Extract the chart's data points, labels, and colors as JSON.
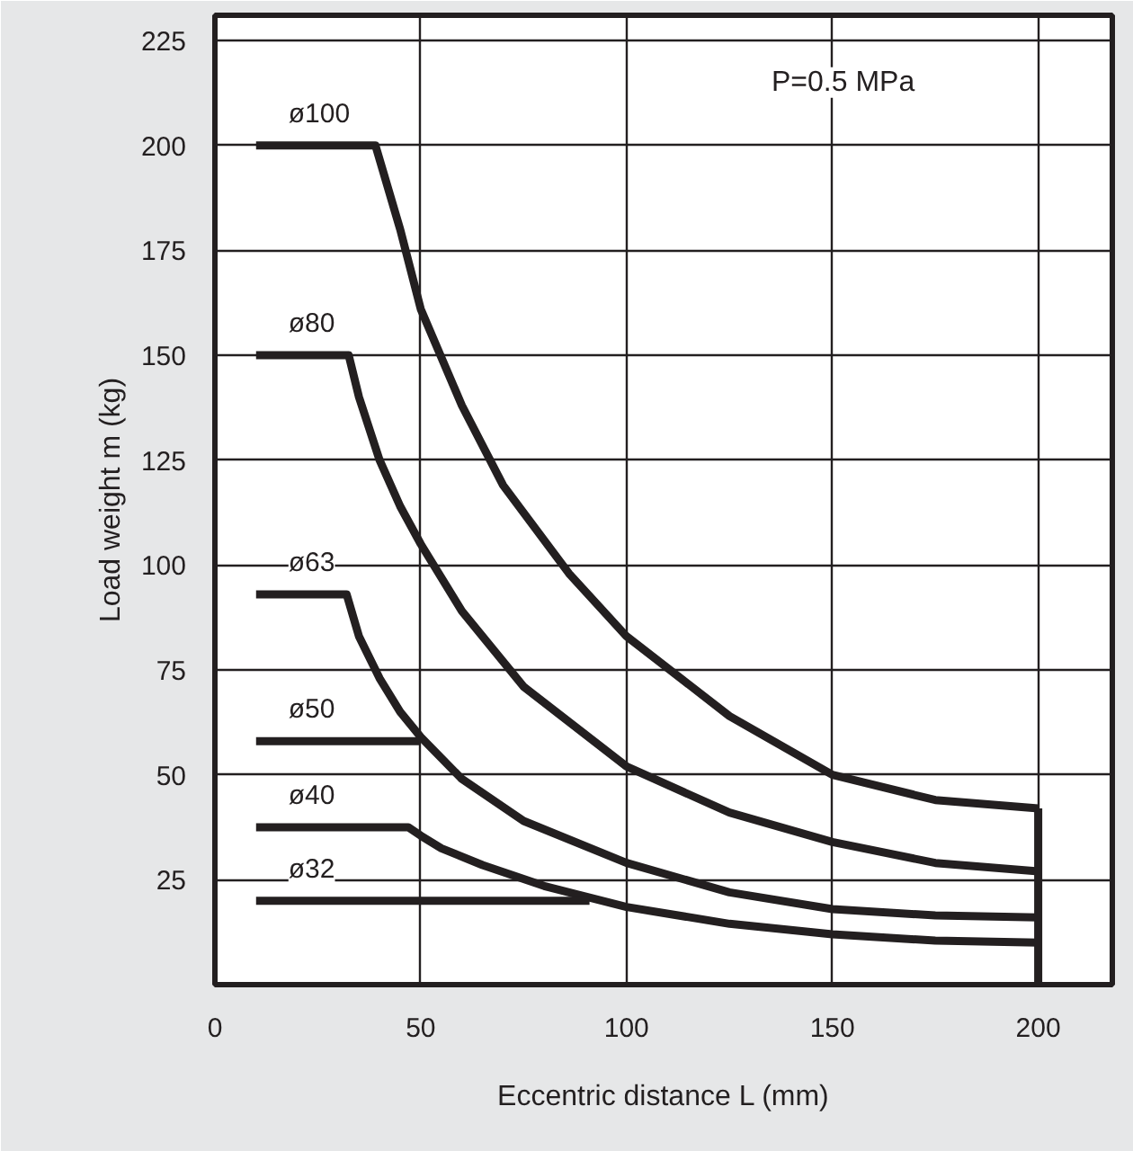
{
  "chart_data": {
    "type": "line",
    "xlabel": "Eccentric distance L (mm)",
    "ylabel": "Load weight m (kg)",
    "annotations": [
      "P=0.5 MPa"
    ],
    "xlim": [
      0,
      218
    ],
    "ylim": [
      0,
      231
    ],
    "xticks": [
      0,
      50,
      100,
      150,
      200
    ],
    "yticks": [
      25,
      50,
      75,
      100,
      125,
      150,
      175,
      200,
      225
    ],
    "grid": true,
    "marker": "none",
    "line_style": "solid",
    "series": [
      {
        "name": "ø100",
        "color": "#231f20",
        "x": [
          10,
          39,
          45,
          50,
          60,
          70,
          86,
          100,
          125,
          150,
          175,
          200
        ],
        "values": [
          200,
          200,
          180,
          161,
          138,
          119,
          98,
          83,
          64,
          50,
          44,
          42
        ]
      },
      {
        "name": "ø80",
        "color": "#231f20",
        "x": [
          10,
          32.5,
          35,
          40,
          45,
          50,
          60,
          75,
          100,
          125,
          150,
          175,
          200
        ],
        "values": [
          150,
          150,
          140,
          125,
          114,
          105,
          89,
          71,
          52,
          41,
          34,
          29,
          27
        ]
      },
      {
        "name": "ø63",
        "color": "#231f20",
        "x": [
          10,
          32,
          35,
          40,
          45,
          50,
          60,
          75,
          100,
          125,
          150,
          175,
          200
        ],
        "values": [
          93,
          93,
          83,
          73,
          65,
          59,
          49,
          39,
          29,
          22,
          18,
          16.5,
          16
        ]
      },
      {
        "name": "ø50",
        "color": "#231f20",
        "x": [
          10,
          50
        ],
        "values": [
          58,
          58
        ]
      },
      {
        "name": "ø40",
        "color": "#231f20",
        "x": [
          10,
          47,
          50,
          55,
          65,
          80,
          100,
          125,
          150,
          175,
          200
        ],
        "values": [
          37.5,
          37.5,
          35.5,
          32.5,
          28.5,
          23.5,
          18.5,
          14.5,
          12,
          10.5,
          10
        ]
      },
      {
        "name": "ø32",
        "color": "#231f20",
        "x": [
          10,
          91
        ],
        "values": [
          20,
          20
        ]
      },
      {
        "color": "#231f20",
        "x": [
          200,
          200
        ],
        "values": [
          0,
          42
        ]
      }
    ]
  }
}
